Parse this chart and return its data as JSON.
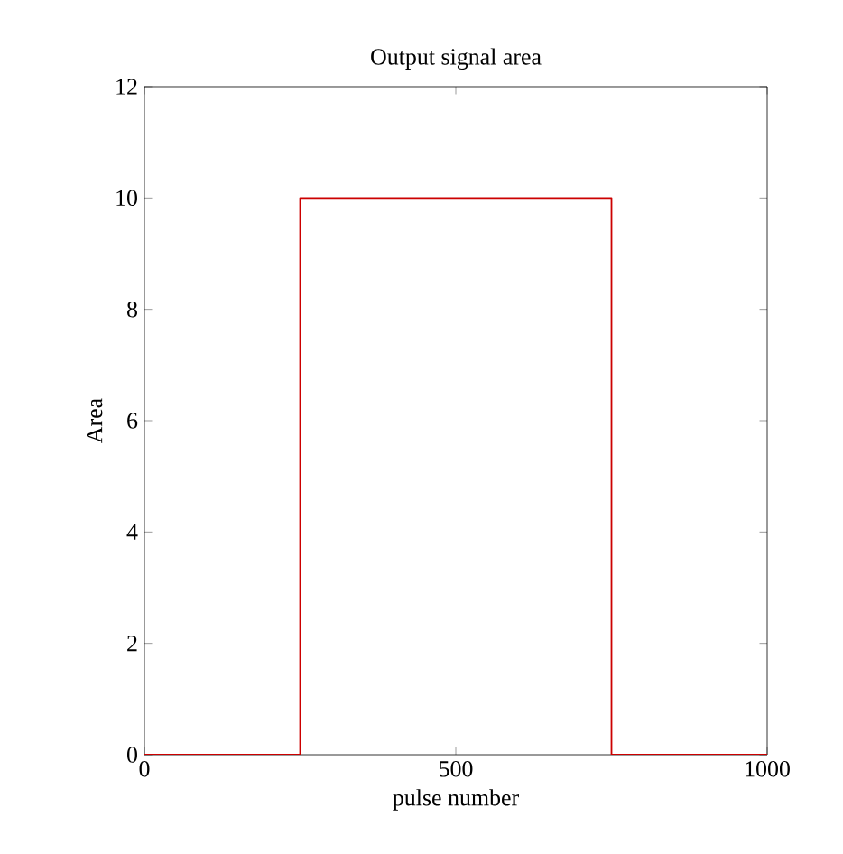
{
  "chart_data": {
    "type": "line",
    "title": "Output signal area",
    "xlabel": "pulse number",
    "ylabel": "Area",
    "x": [
      0,
      250,
      250,
      750,
      750,
      1000
    ],
    "series": [
      {
        "color": "#cc0000",
        "values": [
          0,
          0,
          10,
          10,
          0,
          0
        ]
      }
    ],
    "xlim": [
      0,
      1000
    ],
    "xticks": [
      0,
      500,
      1000
    ],
    "ylim": [
      0,
      12
    ],
    "yticks": [
      0,
      2,
      4,
      6,
      8,
      10,
      12
    ],
    "grid": false,
    "marker": "none",
    "line_style": "solid"
  }
}
